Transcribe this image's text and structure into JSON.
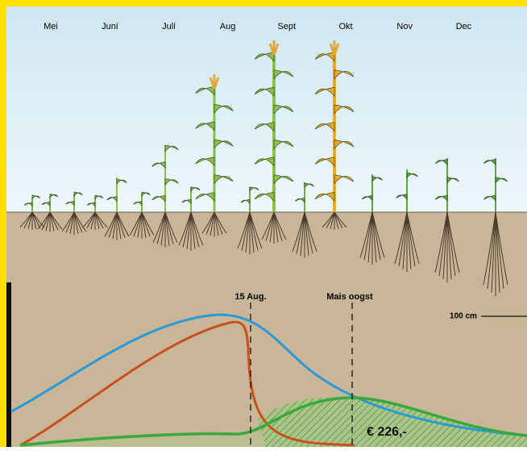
{
  "months": [
    "Mei",
    "Juni",
    "Juli",
    "Aug",
    "Sept",
    "Okt",
    "Nov",
    "Dec"
  ],
  "markers": {
    "cutoff": "15 Aug.",
    "harvest": "Mais oogst"
  },
  "scale_label": "100 cm",
  "amount_label": "€ 226,-"
}
